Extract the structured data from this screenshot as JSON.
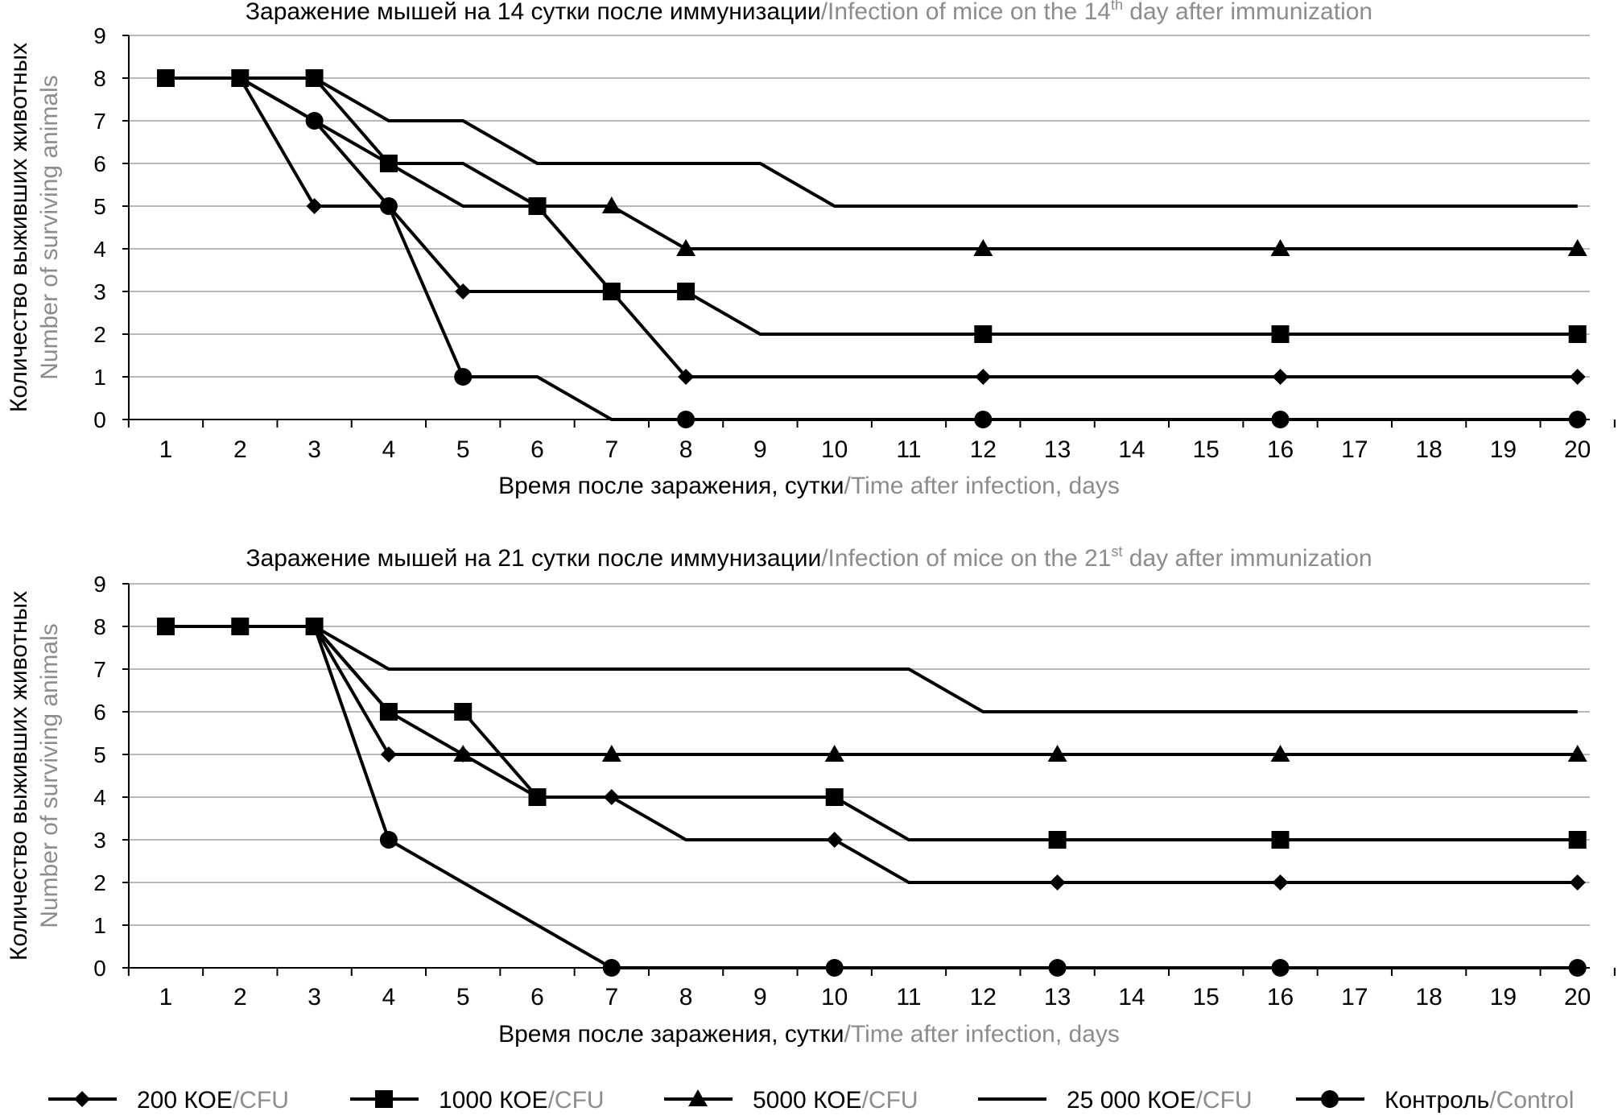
{
  "chart_data": [
    {
      "type": "line",
      "title_ru": "Заражение мышей на 14 сутки после иммунизации",
      "title_en_pre": "/Infection of mice on the 14",
      "title_en_sup": "th",
      "title_en_post": " day after immunization",
      "ylabel_ru": "Количество выживших животных",
      "ylabel_en": "Number of surviving animals",
      "xlabel_ru": "Время после заражения, сутки",
      "xlabel_en": "/Time after infection, days",
      "categories": [
        "1",
        "2",
        "3",
        "4",
        "5",
        "6",
        "7",
        "8",
        "9",
        "10",
        "11",
        "12",
        "13",
        "14",
        "15",
        "16",
        "17",
        "18",
        "19",
        "20"
      ],
      "ylim": [
        0,
        9
      ],
      "yticks": [
        "0",
        "1",
        "2",
        "3",
        "4",
        "5",
        "6",
        "7",
        "8",
        "9"
      ],
      "grid": true,
      "series": [
        {
          "name": "200 КОЕ/CFU",
          "marker": "diamond",
          "values": [
            8,
            8,
            5,
            5,
            3,
            3,
            3,
            1,
            1,
            1,
            1,
            1,
            1,
            1,
            1,
            1,
            1,
            1,
            1,
            1
          ],
          "marker_days": [
            1,
            2,
            3,
            4,
            5,
            8,
            12,
            16,
            20
          ]
        },
        {
          "name": "1000 КОЕ/CFU",
          "marker": "square",
          "values": [
            8,
            8,
            8,
            6,
            6,
            5,
            3,
            3,
            2,
            2,
            2,
            2,
            2,
            2,
            2,
            2,
            2,
            2,
            2,
            2
          ],
          "marker_days": [
            1,
            2,
            3,
            4,
            6,
            7,
            8,
            12,
            16,
            20
          ]
        },
        {
          "name": "5000 КОЕ/CFU",
          "marker": "triangle",
          "values": [
            8,
            8,
            7,
            6,
            5,
            5,
            5,
            4,
            4,
            4,
            4,
            4,
            4,
            4,
            4,
            4,
            4,
            4,
            4,
            4
          ],
          "marker_days": [
            7,
            8,
            12,
            16,
            20
          ]
        },
        {
          "name": "25 000 КОЕ/CFU",
          "marker": "none",
          "values": [
            8,
            8,
            8,
            7,
            7,
            6,
            6,
            6,
            6,
            5,
            5,
            5,
            5,
            5,
            5,
            5,
            5,
            5,
            5,
            5
          ],
          "marker_days": []
        },
        {
          "name": "Контроль/Control",
          "marker": "circle",
          "values": [
            8,
            8,
            7,
            5,
            1,
            1,
            0,
            0,
            0,
            0,
            0,
            0,
            0,
            0,
            0,
            0,
            0,
            0,
            0,
            0
          ],
          "marker_days": [
            3,
            4,
            5,
            8,
            12,
            16,
            20
          ]
        }
      ]
    },
    {
      "type": "line",
      "title_ru": "Заражение мышей на 21 сутки после иммунизации",
      "title_en_pre": "/Infection of mice on the 21",
      "title_en_sup": "st",
      "title_en_post": " day after immunization",
      "ylabel_ru": "Количество выживших животных",
      "ylabel_en": "Number of surviving animals",
      "xlabel_ru": "Время после заражения, сутки",
      "xlabel_en": "/Time after infection, days",
      "categories": [
        "1",
        "2",
        "3",
        "4",
        "5",
        "6",
        "7",
        "8",
        "9",
        "10",
        "11",
        "12",
        "13",
        "14",
        "15",
        "16",
        "17",
        "18",
        "19",
        "20"
      ],
      "ylim": [
        0,
        9
      ],
      "yticks": [
        "0",
        "1",
        "2",
        "3",
        "4",
        "5",
        "6",
        "7",
        "8",
        "9"
      ],
      "grid": true,
      "series": [
        {
          "name": "200 КОЕ/CFU",
          "marker": "diamond",
          "values": [
            8,
            8,
            8,
            5,
            5,
            4,
            4,
            3,
            3,
            3,
            2,
            2,
            2,
            2,
            2,
            2,
            2,
            2,
            2,
            2
          ],
          "marker_days": [
            4,
            5,
            7,
            10,
            13,
            16,
            20
          ]
        },
        {
          "name": "1000 КОЕ/CFU",
          "marker": "square",
          "values": [
            8,
            8,
            8,
            6,
            6,
            4,
            4,
            4,
            4,
            4,
            3,
            3,
            3,
            3,
            3,
            3,
            3,
            3,
            3,
            3
          ],
          "marker_days": [
            1,
            2,
            3,
            4,
            5,
            6,
            10,
            13,
            16,
            20
          ]
        },
        {
          "name": "5000 КОЕ/CFU",
          "marker": "triangle",
          "values": [
            8,
            8,
            8,
            6,
            5,
            5,
            5,
            5,
            5,
            5,
            5,
            5,
            5,
            5,
            5,
            5,
            5,
            5,
            5,
            5
          ],
          "marker_days": [
            5,
            7,
            10,
            13,
            16,
            20
          ]
        },
        {
          "name": "25 000 КОЕ/CFU",
          "marker": "none",
          "values": [
            8,
            8,
            8,
            7,
            7,
            7,
            7,
            7,
            7,
            7,
            7,
            6,
            6,
            6,
            6,
            6,
            6,
            6,
            6,
            6
          ],
          "marker_days": []
        },
        {
          "name": "Контроль/Control",
          "marker": "circle",
          "values": [
            8,
            8,
            8,
            3,
            2,
            1,
            0,
            0,
            0,
            0,
            0,
            0,
            0,
            0,
            0,
            0,
            0,
            0,
            0,
            0
          ],
          "marker_days": [
            4,
            7,
            10,
            13,
            16,
            20
          ]
        }
      ]
    }
  ],
  "legend": [
    {
      "marker": "diamond",
      "label_ru": "200 КОЕ",
      "label_en": "/CFU"
    },
    {
      "marker": "square",
      "label_ru": "1000 КОЕ",
      "label_en": "/CFU"
    },
    {
      "marker": "triangle",
      "label_ru": "5000 КОЕ",
      "label_en": "/CFU"
    },
    {
      "marker": "none",
      "label_ru": "25 000 КОЕ",
      "label_en": "/CFU"
    },
    {
      "marker": "circle",
      "label_ru": "Контроль",
      "label_en": "/Control"
    }
  ],
  "colors": {
    "line": "#000000",
    "grid": "#b8b8b8",
    "english_text": "#8c8c8c",
    "text": "#000000"
  }
}
